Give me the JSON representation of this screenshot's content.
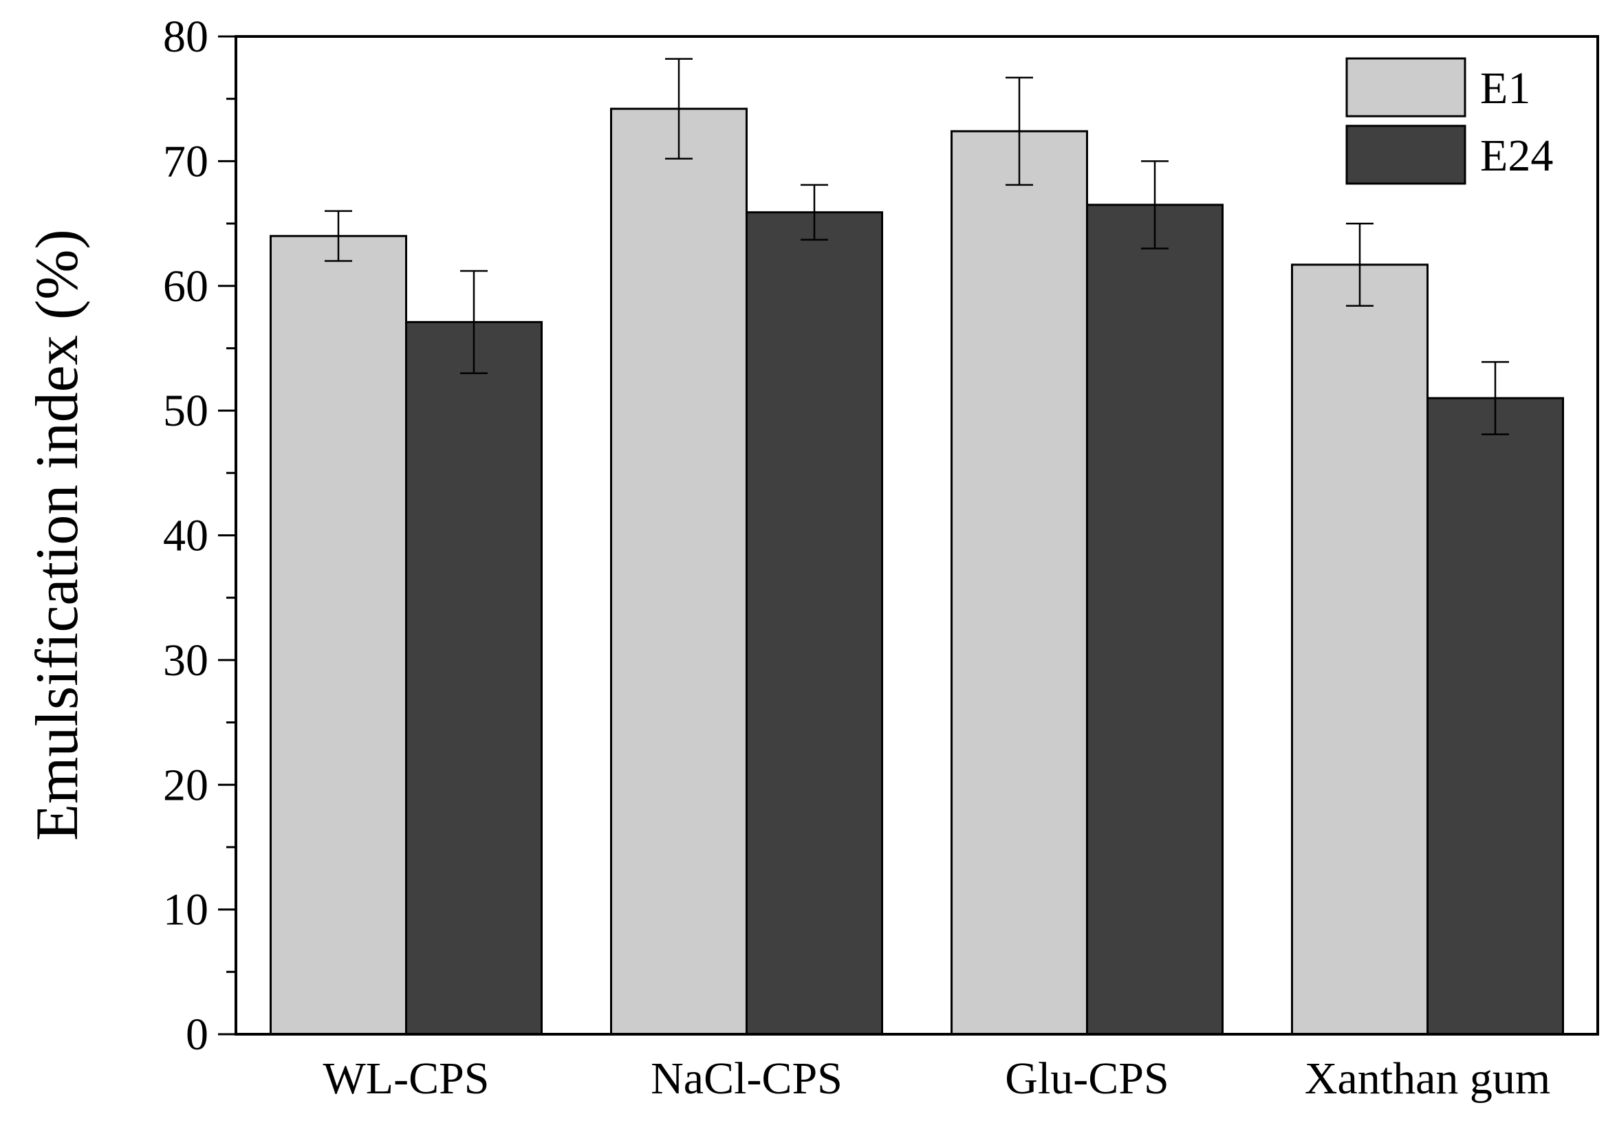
{
  "chart_data": {
    "type": "bar",
    "title": "",
    "xlabel": "",
    "ylabel": "Emulsification index (%)",
    "categories": [
      "WL-CPS",
      "NaCl-CPS",
      "Glu-CPS",
      "Xanthan gum"
    ],
    "series": [
      {
        "name": "E1",
        "values": [
          64.0,
          74.2,
          72.4,
          61.7
        ],
        "errors": [
          2.0,
          4.0,
          4.3,
          3.3
        ],
        "color": "#cccccc"
      },
      {
        "name": "E24",
        "values": [
          57.1,
          65.9,
          66.5,
          51.0
        ],
        "errors": [
          4.1,
          2.2,
          3.5,
          2.9
        ],
        "color": "#404040"
      }
    ],
    "ylim": [
      0,
      80
    ],
    "yticks": [
      0,
      10,
      20,
      30,
      40,
      50,
      60,
      70,
      80
    ],
    "grid": false,
    "legend_position": "top-right"
  }
}
